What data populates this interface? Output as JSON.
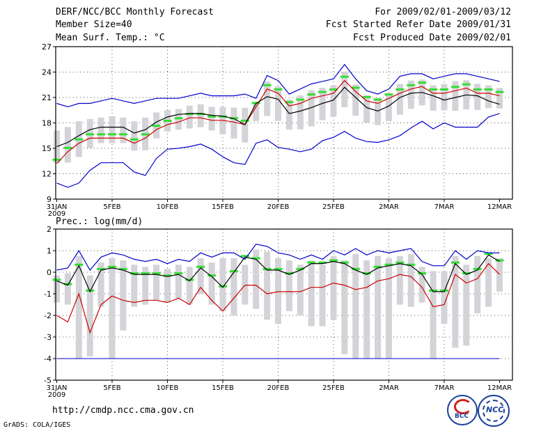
{
  "header": {
    "title": "DERF/NCC/BCC Monthly Forecast",
    "member_size": "Member Size=40",
    "variable": "Mean Surf. Temp.: °C",
    "period": "For 2009/02/01-2009/03/12",
    "refer_date": "Fcst Started Refer Date 2009/01/31",
    "produced_date": "Fcst Produced Date 2009/02/01"
  },
  "footer": {
    "url": "http://cmdp.ncc.cma.gov.cn",
    "grads_credit": "GrADS: COLA/IGES",
    "logo_left_text": "BCC",
    "logo_right_text": "NCC"
  },
  "colors": {
    "max_line": "#0000cc",
    "p90_line": "#cc0000",
    "mean_line": "#000000",
    "box": "#d3d3d8",
    "ens_mean_bar": "#33dd33",
    "grid": "#555555",
    "zero_line": "#0000cc"
  },
  "chart_data": [
    {
      "type": "line",
      "title": "Mean Surf. Temp.: °C",
      "x_tick_labels": [
        "31JAN",
        "5FEB",
        "10FEB",
        "15FEB",
        "20FEB",
        "25FEB",
        "2MAR",
        "7MAR",
        "12MAR"
      ],
      "x_year_label": "2009",
      "ylim": [
        9,
        27
      ],
      "yticks": [
        9,
        12,
        15,
        18,
        21,
        24,
        27
      ],
      "days": 41,
      "series": [
        {
          "name": "max",
          "values": [
            20.3,
            19.9,
            20.3,
            20.3,
            20.6,
            20.9,
            20.6,
            20.3,
            20.6,
            20.9,
            20.9,
            20.9,
            21.2,
            21.5,
            21.2,
            21.2,
            21.2,
            21.4,
            20.9,
            23.6,
            23.0,
            21.4,
            22.0,
            22.6,
            22.9,
            23.2,
            24.9,
            23.2,
            21.8,
            21.4,
            22.0,
            23.5,
            23.8,
            23.8,
            23.2,
            23.5,
            23.8,
            23.8,
            23.5,
            23.2,
            22.9
          ]
        },
        {
          "name": "p90",
          "values": [
            13.2,
            14.6,
            15.6,
            16.2,
            16.2,
            16.2,
            16.2,
            15.6,
            16.2,
            17.2,
            17.8,
            18.1,
            18.6,
            18.6,
            18.3,
            18.3,
            18.1,
            17.8,
            19.9,
            22.0,
            21.5,
            20.0,
            20.3,
            20.9,
            21.2,
            21.5,
            23.0,
            21.7,
            20.6,
            20.3,
            20.9,
            21.5,
            22.0,
            22.3,
            21.5,
            21.5,
            21.8,
            22.1,
            21.5,
            21.5,
            21.2
          ]
        },
        {
          "name": "mean",
          "values": [
            15.2,
            15.7,
            16.5,
            17.2,
            17.5,
            17.5,
            17.5,
            16.8,
            17.2,
            18.1,
            18.7,
            19.0,
            19.1,
            19.1,
            18.9,
            18.8,
            18.5,
            17.8,
            20.3,
            21.1,
            20.8,
            19.1,
            19.4,
            19.8,
            20.3,
            20.7,
            22.2,
            21.0,
            19.8,
            19.4,
            20.0,
            21.0,
            21.5,
            21.6,
            21.2,
            20.7,
            21.0,
            21.3,
            21.2,
            20.6,
            20.2
          ]
        },
        {
          "name": "min",
          "values": [
            10.9,
            10.4,
            10.9,
            12.4,
            13.3,
            13.3,
            13.3,
            12.2,
            11.8,
            13.8,
            14.9,
            15.0,
            15.2,
            15.5,
            14.9,
            14.0,
            13.3,
            13.1,
            15.6,
            16.0,
            15.1,
            14.9,
            14.6,
            14.9,
            15.9,
            16.3,
            17.0,
            16.2,
            15.8,
            15.7,
            16.0,
            16.5,
            17.4,
            18.2,
            17.3,
            18.0,
            17.5,
            17.5,
            17.5,
            18.7,
            19.1
          ]
        }
      ]
    },
    {
      "type": "line",
      "title": "Prec.: log(mm/d)",
      "x_tick_labels": [
        "31JAN",
        "5FEB",
        "10FEB",
        "15FEB",
        "20FEB",
        "25FEB",
        "2MAR",
        "7MAR",
        "12MAR"
      ],
      "x_year_label": "2009",
      "ylim": [
        -5,
        2
      ],
      "yticks": [
        -5,
        -4,
        -3,
        -2,
        -1,
        0,
        1,
        2
      ],
      "days": 41,
      "reference_line": -4,
      "series": [
        {
          "name": "max",
          "values": [
            0.1,
            0.2,
            1.0,
            0.1,
            0.7,
            0.9,
            0.8,
            0.6,
            0.5,
            0.6,
            0.4,
            0.6,
            0.5,
            0.9,
            0.7,
            0.9,
            0.9,
            0.6,
            1.3,
            1.2,
            0.9,
            0.8,
            0.6,
            0.8,
            0.6,
            1.0,
            0.8,
            1.1,
            0.8,
            1.0,
            0.9,
            1.0,
            1.1,
            0.5,
            0.3,
            0.3,
            1.0,
            0.6,
            1.0,
            0.9,
            0.9
          ]
        },
        {
          "name": "mean",
          "values": [
            -0.4,
            -0.6,
            0.3,
            -0.9,
            0.1,
            0.2,
            0.1,
            -0.1,
            -0.1,
            -0.1,
            -0.2,
            -0.1,
            -0.4,
            0.2,
            -0.2,
            -0.7,
            0.0,
            0.7,
            0.6,
            0.1,
            0.1,
            -0.1,
            0.1,
            0.4,
            0.4,
            0.5,
            0.4,
            0.1,
            -0.1,
            0.2,
            0.3,
            0.4,
            0.3,
            -0.1,
            -0.9,
            -0.9,
            0.4,
            -0.1,
            0.1,
            0.8,
            0.5
          ]
        },
        {
          "name": "p90",
          "values": [
            -2.0,
            -2.3,
            -1.0,
            -2.8,
            -1.5,
            -1.1,
            -1.3,
            -1.4,
            -1.3,
            -1.3,
            -1.4,
            -1.2,
            -1.5,
            -0.7,
            -1.3,
            -1.8,
            -1.2,
            -0.6,
            -0.6,
            -1.0,
            -0.9,
            -0.9,
            -0.9,
            -0.7,
            -0.7,
            -0.5,
            -0.6,
            -0.8,
            -0.7,
            -0.4,
            -0.3,
            -0.1,
            -0.2,
            -0.7,
            -1.6,
            -1.5,
            -0.1,
            -0.5,
            -0.3,
            0.4,
            -0.1
          ]
        }
      ]
    }
  ]
}
